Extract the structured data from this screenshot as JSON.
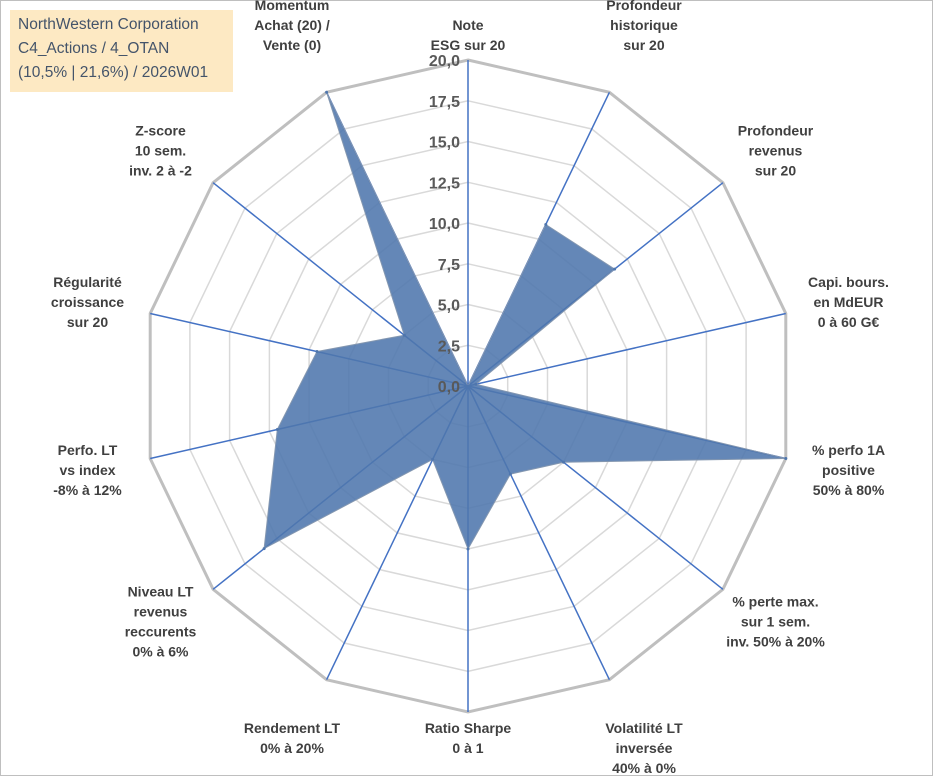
{
  "chart_data": {
    "type": "radar",
    "title_lines": [
      "NorthWestern Corporation",
      "C4_Actions / 4_OTAN",
      "(10,5% | 21,6%) / 2026W01"
    ],
    "axes": [
      {
        "label": [
          "Note",
          "ESG sur 20"
        ],
        "value": 0.0
      },
      {
        "label": [
          "Profondeur",
          "historique",
          "sur 20"
        ],
        "value": 11.0
      },
      {
        "label": [
          "Profondeur",
          "revenus",
          "sur 20"
        ],
        "value": 11.5
      },
      {
        "label": [
          "Capi. bours.",
          "en MdEUR",
          "0 à 60 G€"
        ],
        "value": 0.5
      },
      {
        "label": [
          "% perfo 1A",
          "positive",
          "50% à 80%"
        ],
        "value": 20.0
      },
      {
        "label": [
          "% perte max.",
          "sur 1 sem.",
          "inv. 50% à 20%"
        ],
        "value": 7.5
      },
      {
        "label": [
          "Volatilité LT",
          "inversée",
          "40% à 0%"
        ],
        "value": 6.0
      },
      {
        "label": [
          "Ratio Sharpe",
          "0 à 1"
        ],
        "value": 10.0
      },
      {
        "label": [
          "Rendement LT",
          "0% à 20%"
        ],
        "value": 5.0
      },
      {
        "label": [
          "Niveau LT",
          "revenus",
          "reccurents",
          "0% à 6%"
        ],
        "value": 16.0
      },
      {
        "label": [
          "Perfo. LT",
          "vs index",
          "-8% à 12%"
        ],
        "value": 12.0
      },
      {
        "label": [
          "Régularité",
          "croissance",
          "sur 20"
        ],
        "value": 9.5
      },
      {
        "label": [
          "Z-score",
          "10 sem.",
          "inv. 2 à -2"
        ],
        "value": 5.0
      },
      {
        "label": [
          "Momentum",
          "Achat (20) /",
          "Vente (0)"
        ],
        "value": 20.0
      }
    ],
    "rmin": 0,
    "rmax": 20,
    "tick_labels": [
      "0,0",
      "2,5",
      "5,0",
      "7,5",
      "10,0",
      "12,5",
      "15,0",
      "17,5",
      "20,0"
    ],
    "fill_color": "#4f76ad",
    "outer_grid_color": "#bfbfbf",
    "inner_grid_color": "#d9d9d9",
    "spoke_color": "#4472c4"
  }
}
